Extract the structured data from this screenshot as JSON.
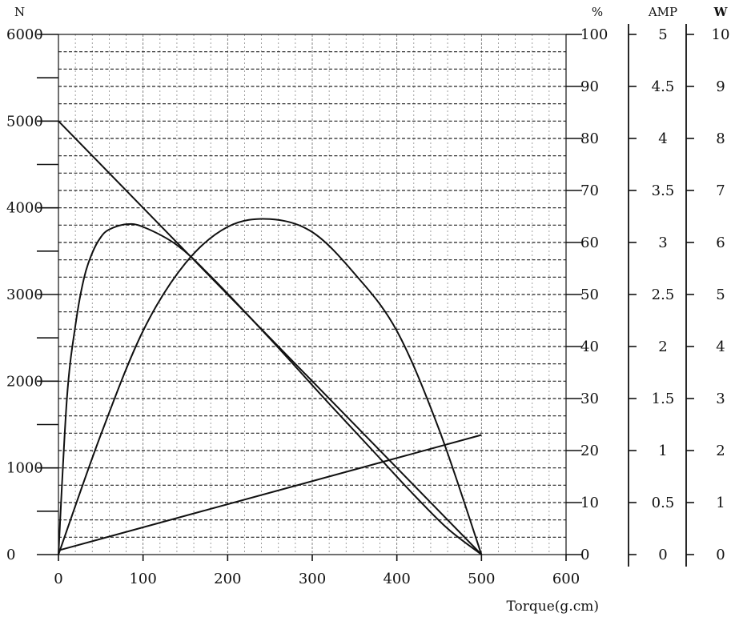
{
  "chart_data": {
    "type": "line",
    "xlabel": "Torque(g.cm)",
    "xlim": [
      0,
      600
    ],
    "x_ticks": [
      "0",
      "100",
      "200",
      "300",
      "400",
      "500",
      "600"
    ],
    "axes": {
      "N": {
        "label": "N",
        "range": [
          0,
          6000
        ],
        "ticks": [
          "0",
          "1000",
          "2000",
          "3000",
          "4000",
          "5000",
          "6000"
        ]
      },
      "percent": {
        "label": "%",
        "range": [
          0,
          100
        ],
        "ticks": [
          "0",
          "10",
          "20",
          "30",
          "40",
          "50",
          "60",
          "70",
          "80",
          "90",
          "100"
        ]
      },
      "amp": {
        "label": "AMP",
        "range": [
          0,
          5
        ],
        "ticks": [
          "0",
          "0.5",
          "1",
          "1.5",
          "2",
          "2.5",
          "3",
          "3.5",
          "4",
          "4.5",
          "5"
        ]
      },
      "watt": {
        "label": "W",
        "range": [
          0,
          10
        ],
        "ticks": [
          "0",
          "1",
          "2",
          "3",
          "4",
          "5",
          "6",
          "7",
          "8",
          "9",
          "10"
        ]
      }
    },
    "grid": true,
    "series": [
      {
        "axis": "N",
        "x": [
          0,
          500
        ],
        "y": [
          5000,
          0
        ]
      },
      {
        "axis": "percent",
        "x": [
          0,
          10,
          20,
          30,
          40,
          50,
          60,
          80,
          100,
          140,
          180,
          250,
          320,
          380,
          420,
          460,
          500
        ],
        "y": [
          0,
          30,
          44,
          53,
          58,
          61,
          62.5,
          63.5,
          63,
          59.5,
          53.5,
          41.5,
          29,
          18.5,
          11.5,
          5,
          0
        ]
      },
      {
        "axis": "watt",
        "x": [
          0,
          50,
          100,
          150,
          200,
          250,
          300,
          350,
          400,
          450,
          500
        ],
        "y": [
          0,
          2.3,
          4.3,
          5.6,
          6.3,
          6.45,
          6.2,
          5.4,
          4.3,
          2.4,
          0
        ]
      },
      {
        "axis": "amp",
        "x": [
          0,
          500
        ],
        "y": [
          0.04,
          1.15
        ]
      }
    ]
  }
}
